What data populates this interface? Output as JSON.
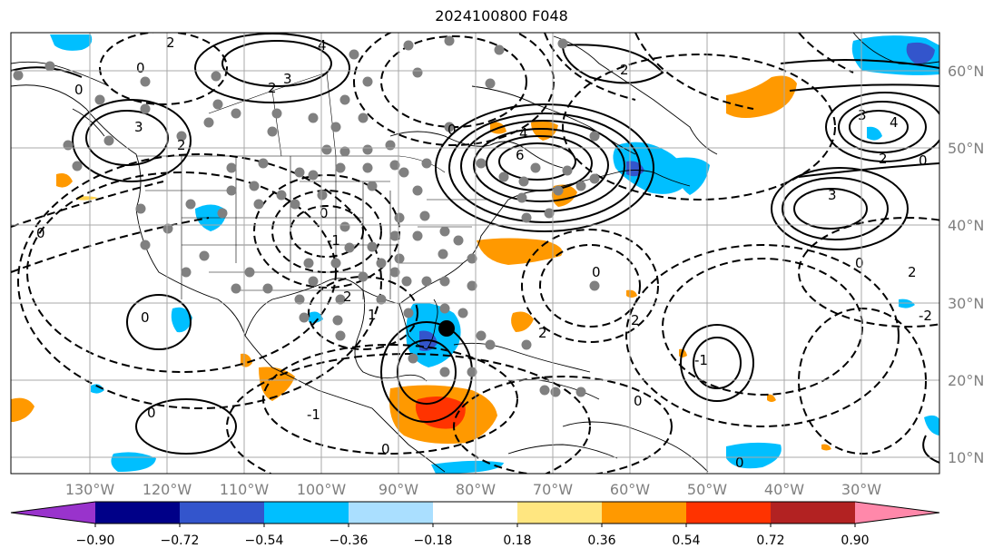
{
  "title": "2024100800 F048",
  "lon_ticks": [
    "130°W",
    "120°W",
    "110°W",
    "100°W",
    "90°W",
    "80°W",
    "70°W",
    "60°W",
    "50°W",
    "40°W",
    "30°W"
  ],
  "lat_ticks": [
    "60°N",
    "50°N",
    "40°N",
    "30°N",
    "20°N",
    "10°N"
  ],
  "colorbar": {
    "ticks": [
      "−0.90",
      "−0.72",
      "−0.54",
      "−0.36",
      "−0.18",
      "0.18",
      "0.36",
      "0.54",
      "0.72",
      "0.90"
    ],
    "colors": [
      "#9933cc",
      "#000088",
      "#3355cc",
      "#00bfff",
      "#aadfff",
      "#ffffff",
      "#ffe680",
      "#ff9900",
      "#ff3300",
      "#b22222",
      "#ff88aa"
    ]
  },
  "contour_labels": [
    {
      "t": "2"
    },
    {
      "t": "0"
    },
    {
      "t": "2"
    },
    {
      "t": "3"
    },
    {
      "t": "4"
    },
    {
      "t": "0"
    },
    {
      "t": "3"
    },
    {
      "t": "2"
    },
    {
      "t": "0"
    },
    {
      "t": "-1"
    },
    {
      "t": "0"
    },
    {
      "t": "6"
    },
    {
      "t": "4"
    },
    {
      "t": "2"
    },
    {
      "t": "0"
    },
    {
      "t": "3"
    },
    {
      "t": "4"
    },
    {
      "t": "2"
    },
    {
      "t": "0"
    },
    {
      "t": "3"
    },
    {
      "t": "0"
    },
    {
      "t": "2"
    },
    {
      "t": "-1"
    },
    {
      "t": "2"
    },
    {
      "t": "0"
    },
    {
      "t": "1"
    },
    {
      "t": "2"
    },
    {
      "t": "-1"
    },
    {
      "t": "0"
    },
    {
      "t": "-2"
    },
    {
      "t": "0"
    },
    {
      "t": "2"
    },
    {
      "t": "0"
    },
    {
      "t": "0"
    },
    {
      "t": "0"
    }
  ]
}
